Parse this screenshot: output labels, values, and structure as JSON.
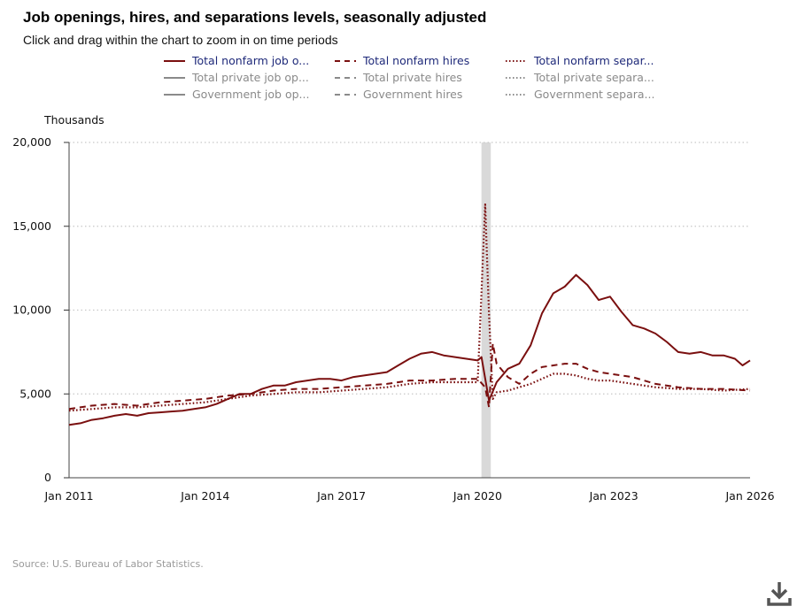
{
  "title": "Job openings, hires, and separations levels, seasonally adjusted",
  "subtitle": "Click and drag within the chart to zoom in on time periods",
  "source": "Source: U.S. Bureau of Labor Statistics.",
  "download_icon": "download-icon",
  "legend": {
    "items": [
      {
        "label": "Total nonfarm job o...",
        "state": "on",
        "style": "solid"
      },
      {
        "label": "Total nonfarm hires",
        "state": "on",
        "style": "dashed"
      },
      {
        "label": "Total nonfarm separ...",
        "state": "on",
        "style": "dotted"
      },
      {
        "label": "Total private job op...",
        "state": "off",
        "style": "solid"
      },
      {
        "label": "Total private hires",
        "state": "off",
        "style": "dashed"
      },
      {
        "label": "Total private separa...",
        "state": "off",
        "style": "dotted"
      },
      {
        "label": "Government job op...",
        "state": "off",
        "style": "solid"
      },
      {
        "label": "Government hires",
        "state": "off",
        "style": "dashed"
      },
      {
        "label": "Government separa...",
        "state": "off",
        "style": "dotted"
      }
    ]
  },
  "colors": {
    "series": "#7a0f0f",
    "inactive": "#8a8a8a",
    "recession": "#d9d9d9",
    "grid": "#c8c8c8"
  },
  "chart_data": {
    "type": "line",
    "ylabel": "Thousands",
    "ylim": [
      0,
      20000
    ],
    "yticks": [
      "0",
      "5,000",
      "10,000",
      "15,000",
      "20,000"
    ],
    "xlim": [
      "2011-01",
      "2026-01"
    ],
    "xticks": [
      "Jan 2011",
      "Jan 2014",
      "Jan 2017",
      "Jan 2020",
      "Jan 2023",
      "Jan 2026"
    ],
    "grid": "horizontal dotted",
    "recession_shading": {
      "start": "2020-02",
      "end": "2020-04"
    },
    "series": [
      {
        "name": "Total nonfarm job openings",
        "style": "solid",
        "points": [
          [
            "2011-01",
            3150
          ],
          [
            "2011-04",
            3250
          ],
          [
            "2011-07",
            3450
          ],
          [
            "2011-10",
            3550
          ],
          [
            "2012-01",
            3700
          ],
          [
            "2012-04",
            3800
          ],
          [
            "2012-07",
            3700
          ],
          [
            "2012-10",
            3850
          ],
          [
            "2013-01",
            3900
          ],
          [
            "2013-04",
            3950
          ],
          [
            "2013-07",
            4000
          ],
          [
            "2013-10",
            4100
          ],
          [
            "2014-01",
            4200
          ],
          [
            "2014-04",
            4400
          ],
          [
            "2014-07",
            4700
          ],
          [
            "2014-10",
            5000
          ],
          [
            "2015-01",
            5000
          ],
          [
            "2015-04",
            5300
          ],
          [
            "2015-07",
            5500
          ],
          [
            "2015-10",
            5500
          ],
          [
            "2016-01",
            5700
          ],
          [
            "2016-04",
            5800
          ],
          [
            "2016-07",
            5900
          ],
          [
            "2016-10",
            5900
          ],
          [
            "2017-01",
            5800
          ],
          [
            "2017-04",
            6000
          ],
          [
            "2017-07",
            6100
          ],
          [
            "2017-10",
            6200
          ],
          [
            "2018-01",
            6300
          ],
          [
            "2018-04",
            6700
          ],
          [
            "2018-07",
            7100
          ],
          [
            "2018-10",
            7400
          ],
          [
            "2019-01",
            7500
          ],
          [
            "2019-04",
            7300
          ],
          [
            "2019-07",
            7200
          ],
          [
            "2019-10",
            7100
          ],
          [
            "2020-01",
            7000
          ],
          [
            "2020-02",
            7200
          ],
          [
            "2020-04",
            4600
          ],
          [
            "2020-06",
            5700
          ],
          [
            "2020-09",
            6500
          ],
          [
            "2020-12",
            6800
          ],
          [
            "2021-03",
            7900
          ],
          [
            "2021-06",
            9800
          ],
          [
            "2021-09",
            11000
          ],
          [
            "2021-12",
            11400
          ],
          [
            "2022-03",
            12100
          ],
          [
            "2022-06",
            11500
          ],
          [
            "2022-09",
            10600
          ],
          [
            "2022-12",
            10800
          ],
          [
            "2023-03",
            9900
          ],
          [
            "2023-06",
            9100
          ],
          [
            "2023-09",
            8900
          ],
          [
            "2023-12",
            8600
          ],
          [
            "2024-03",
            8100
          ],
          [
            "2024-06",
            7500
          ],
          [
            "2024-09",
            7400
          ],
          [
            "2024-12",
            7500
          ],
          [
            "2025-03",
            7300
          ],
          [
            "2025-06",
            7300
          ],
          [
            "2025-09",
            7100
          ],
          [
            "2025-11",
            6700
          ],
          [
            "2026-01",
            7000
          ]
        ]
      },
      {
        "name": "Total nonfarm hires",
        "style": "dashed",
        "points": [
          [
            "2011-01",
            4100
          ],
          [
            "2011-07",
            4300
          ],
          [
            "2012-01",
            4400
          ],
          [
            "2012-07",
            4300
          ],
          [
            "2013-01",
            4500
          ],
          [
            "2013-07",
            4600
          ],
          [
            "2014-01",
            4700
          ],
          [
            "2014-07",
            4900
          ],
          [
            "2015-01",
            5000
          ],
          [
            "2015-07",
            5200
          ],
          [
            "2016-01",
            5300
          ],
          [
            "2016-07",
            5300
          ],
          [
            "2017-01",
            5400
          ],
          [
            "2017-07",
            5500
          ],
          [
            "2018-01",
            5600
          ],
          [
            "2018-07",
            5800
          ],
          [
            "2019-01",
            5800
          ],
          [
            "2019-07",
            5900
          ],
          [
            "2020-01",
            5900
          ],
          [
            "2020-03",
            5400
          ],
          [
            "2020-04",
            4200
          ],
          [
            "2020-05",
            8000
          ],
          [
            "2020-06",
            6800
          ],
          [
            "2020-09",
            6000
          ],
          [
            "2020-12",
            5600
          ],
          [
            "2021-03",
            6200
          ],
          [
            "2021-06",
            6600
          ],
          [
            "2021-09",
            6700
          ],
          [
            "2021-12",
            6800
          ],
          [
            "2022-03",
            6800
          ],
          [
            "2022-06",
            6500
          ],
          [
            "2022-09",
            6300
          ],
          [
            "2022-12",
            6200
          ],
          [
            "2023-06",
            6000
          ],
          [
            "2023-12",
            5600
          ],
          [
            "2024-06",
            5400
          ],
          [
            "2024-12",
            5300
          ],
          [
            "2025-06",
            5300
          ],
          [
            "2026-01",
            5200
          ]
        ]
      },
      {
        "name": "Total nonfarm separations",
        "style": "dotted",
        "points": [
          [
            "2011-01",
            4000
          ],
          [
            "2011-07",
            4100
          ],
          [
            "2012-01",
            4200
          ],
          [
            "2012-07",
            4200
          ],
          [
            "2013-01",
            4300
          ],
          [
            "2013-07",
            4400
          ],
          [
            "2014-01",
            4500
          ],
          [
            "2014-07",
            4700
          ],
          [
            "2015-01",
            4900
          ],
          [
            "2015-07",
            5000
          ],
          [
            "2016-01",
            5100
          ],
          [
            "2016-07",
            5100
          ],
          [
            "2017-01",
            5200
          ],
          [
            "2017-07",
            5300
          ],
          [
            "2018-01",
            5400
          ],
          [
            "2018-07",
            5600
          ],
          [
            "2019-01",
            5700
          ],
          [
            "2019-07",
            5700
          ],
          [
            "2020-01",
            5700
          ],
          [
            "2020-03",
            16300
          ],
          [
            "2020-04",
            9800
          ],
          [
            "2020-05",
            4700
          ],
          [
            "2020-06",
            5100
          ],
          [
            "2020-09",
            5200
          ],
          [
            "2020-12",
            5400
          ],
          [
            "2021-03",
            5600
          ],
          [
            "2021-06",
            5900
          ],
          [
            "2021-09",
            6200
          ],
          [
            "2021-12",
            6200
          ],
          [
            "2022-03",
            6100
          ],
          [
            "2022-06",
            5900
          ],
          [
            "2022-09",
            5800
          ],
          [
            "2022-12",
            5800
          ],
          [
            "2023-06",
            5600
          ],
          [
            "2023-12",
            5400
          ],
          [
            "2024-06",
            5300
          ],
          [
            "2024-12",
            5300
          ],
          [
            "2025-06",
            5200
          ],
          [
            "2026-01",
            5300
          ]
        ]
      }
    ]
  }
}
